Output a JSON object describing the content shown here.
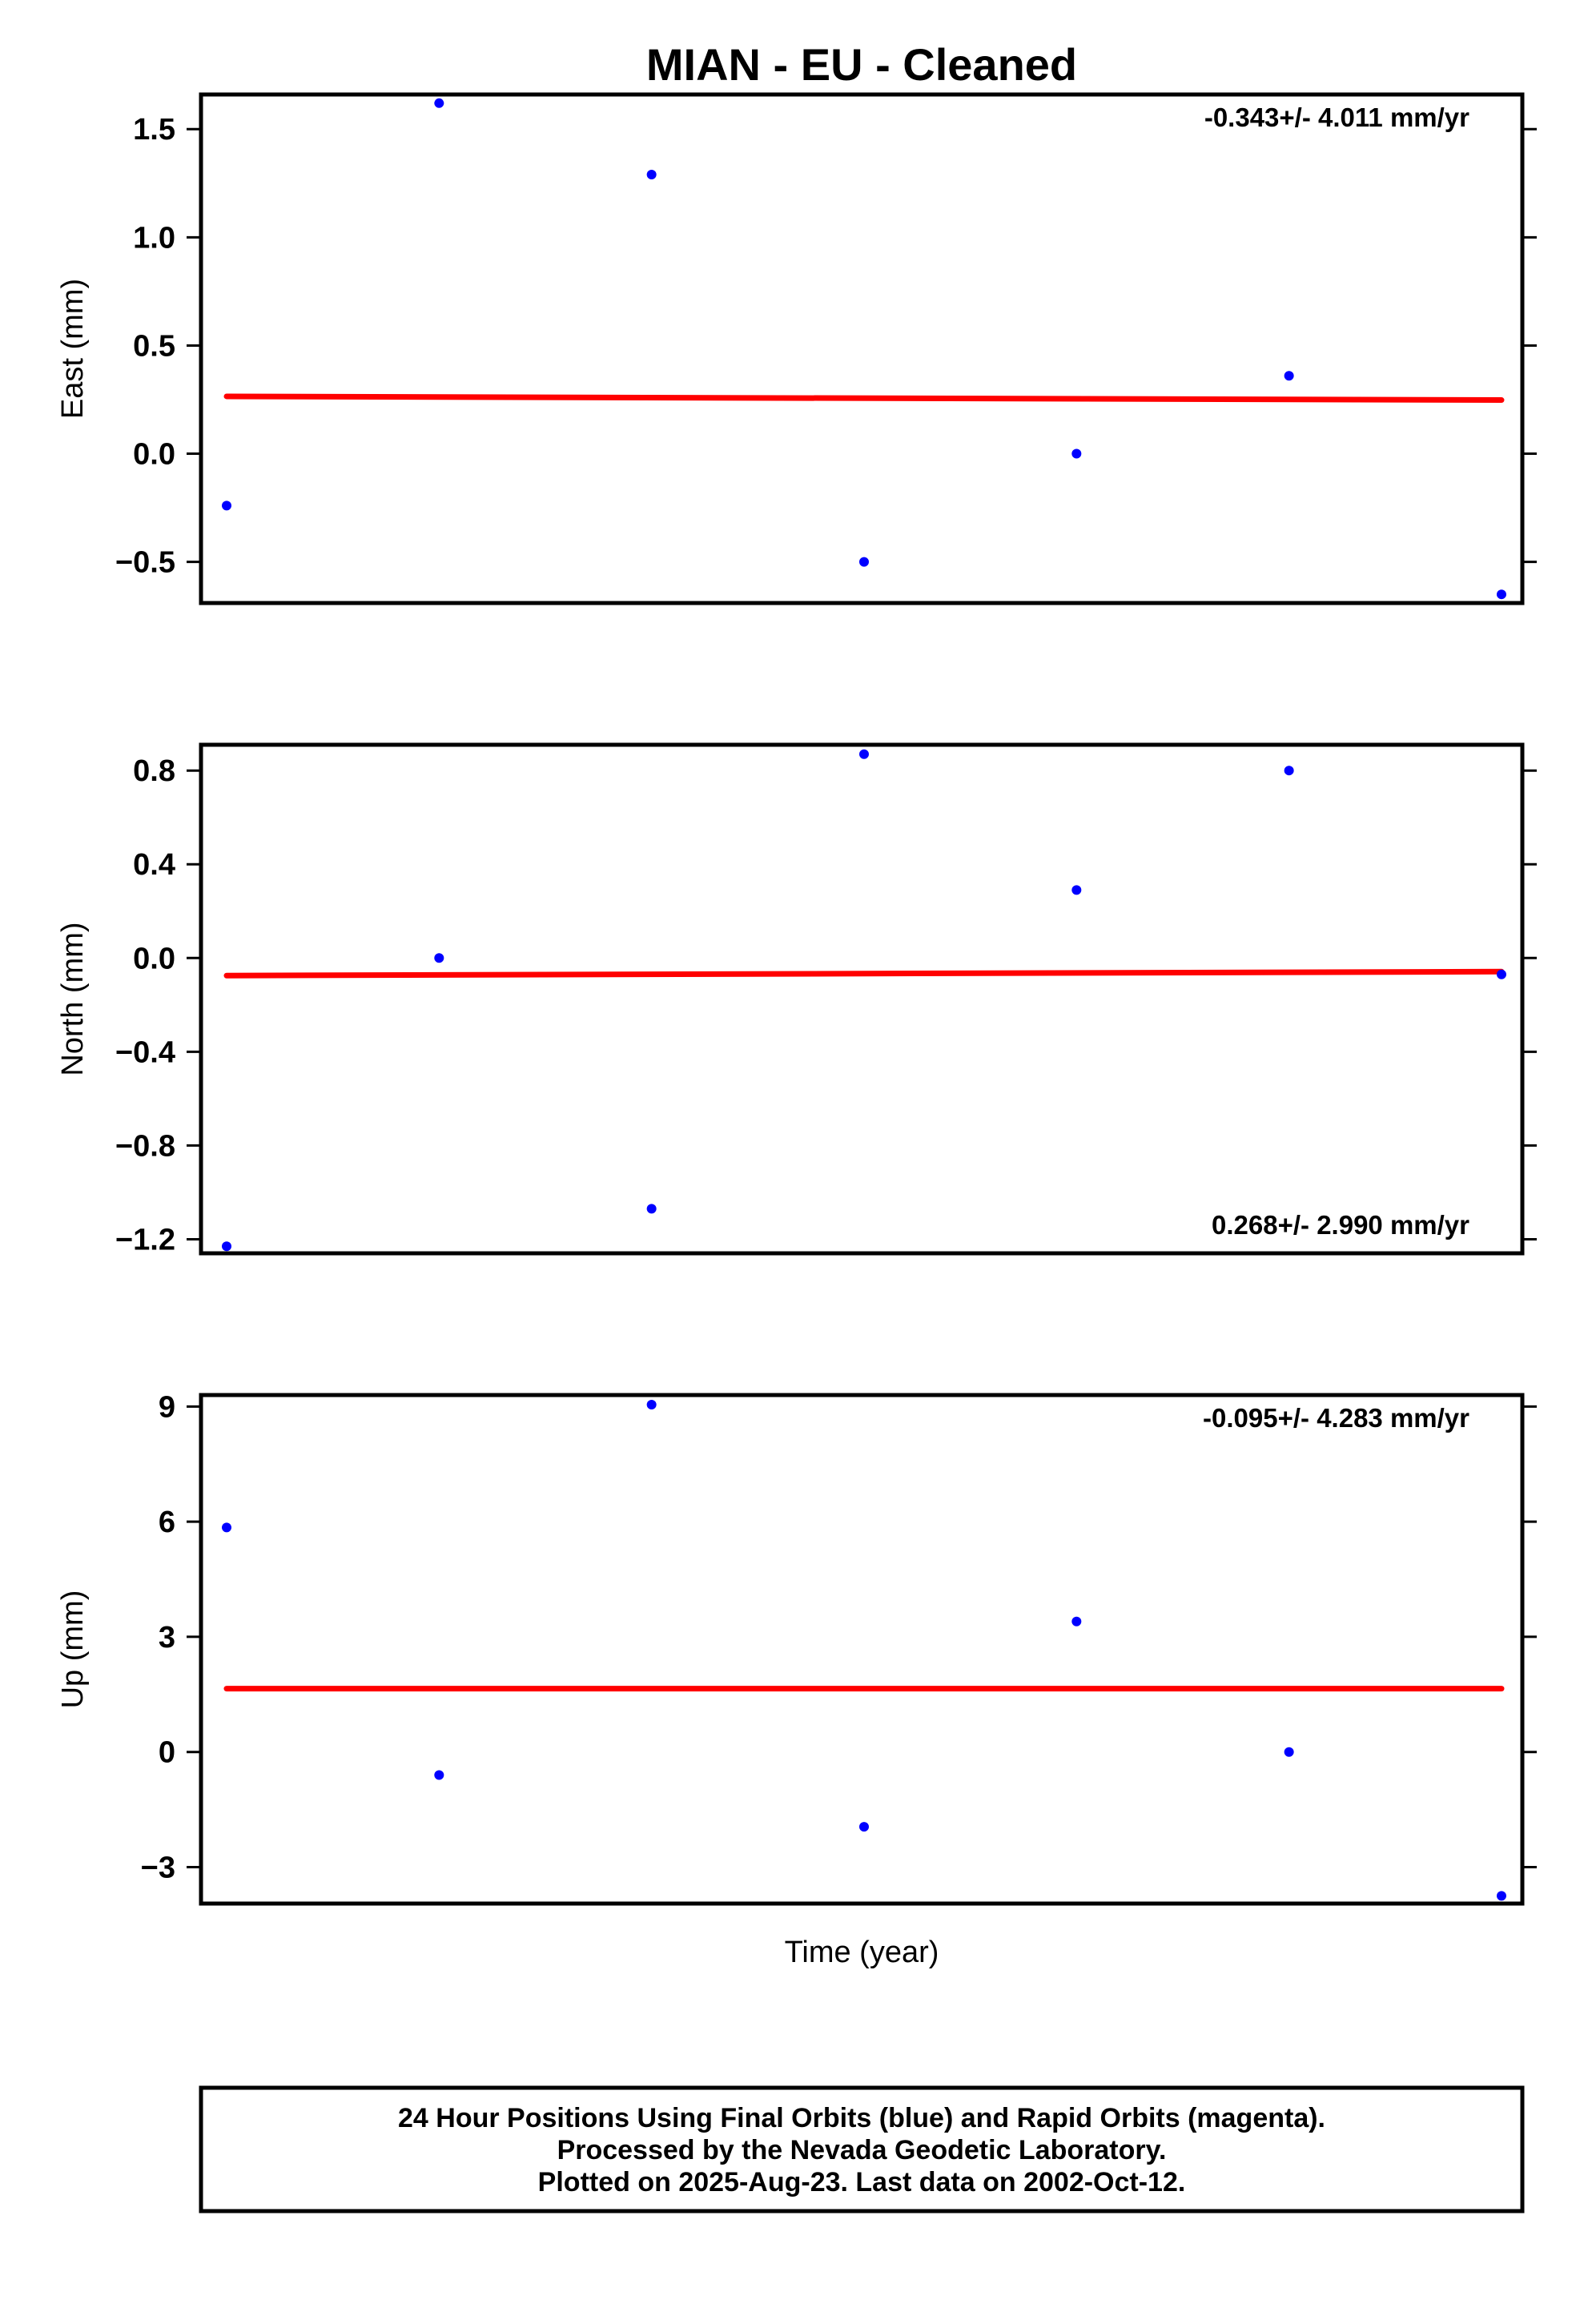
{
  "chart_data": {
    "type": "scatter",
    "title": "MIAN  - EU - Cleaned",
    "xlabel": "Time (year)",
    "x_index": [
      0,
      1,
      2,
      3,
      4,
      5,
      6
    ],
    "panels": [
      {
        "ylabel": "East (mm)",
        "ylim": [
          -0.69,
          1.66
        ],
        "yticks": [
          1.5,
          1.0,
          0.5,
          0.0,
          -0.5
        ],
        "ytick_labels": [
          "1.5",
          "1.0",
          "0.5",
          "0.0",
          "−0.5"
        ],
        "rate": "-0.343+/- 4.011 mm/yr",
        "rate_position": "top-right",
        "values": [
          -0.24,
          1.62,
          1.29,
          -0.5,
          0.0,
          0.36,
          -0.65
        ],
        "fit": [
          0.265,
          0.248
        ]
      },
      {
        "ylabel": "North (mm)",
        "ylim": [
          -1.26,
          0.91
        ],
        "yticks": [
          0.8,
          0.4,
          0.0,
          -0.4,
          -0.8,
          -1.2
        ],
        "ytick_labels": [
          "0.8",
          "0.4",
          "0.0",
          "−0.4",
          "−0.8",
          "−1.2"
        ],
        "rate": "0.268+/- 2.990 mm/yr",
        "rate_position": "bottom-right",
        "values": [
          -1.23,
          0.0,
          -1.07,
          0.87,
          0.29,
          0.8,
          -0.07
        ],
        "fit": [
          -0.075,
          -0.058
        ]
      },
      {
        "ylabel": "Up (mm)",
        "ylim": [
          -3.95,
          9.3
        ],
        "yticks": [
          9,
          6,
          3,
          0,
          -3
        ],
        "ytick_labels": [
          "9",
          "6",
          "3",
          "0",
          "−3"
        ],
        "rate": "-0.095+/- 4.283 mm/yr",
        "rate_position": "top-right",
        "values": [
          5.85,
          -0.6,
          9.05,
          -1.95,
          3.4,
          0.0,
          -3.75
        ],
        "fit": [
          1.65,
          1.65
        ]
      }
    ],
    "colors": {
      "points": "#0000ff",
      "fit": "#ff0000"
    },
    "footer": [
      "24 Hour Positions Using Final Orbits (blue) and Rapid Orbits (magenta).",
      "Processed by the Nevada Geodetic Laboratory.",
      "Plotted on 2025-Aug-23. Last data on 2002-Oct-12."
    ]
  }
}
